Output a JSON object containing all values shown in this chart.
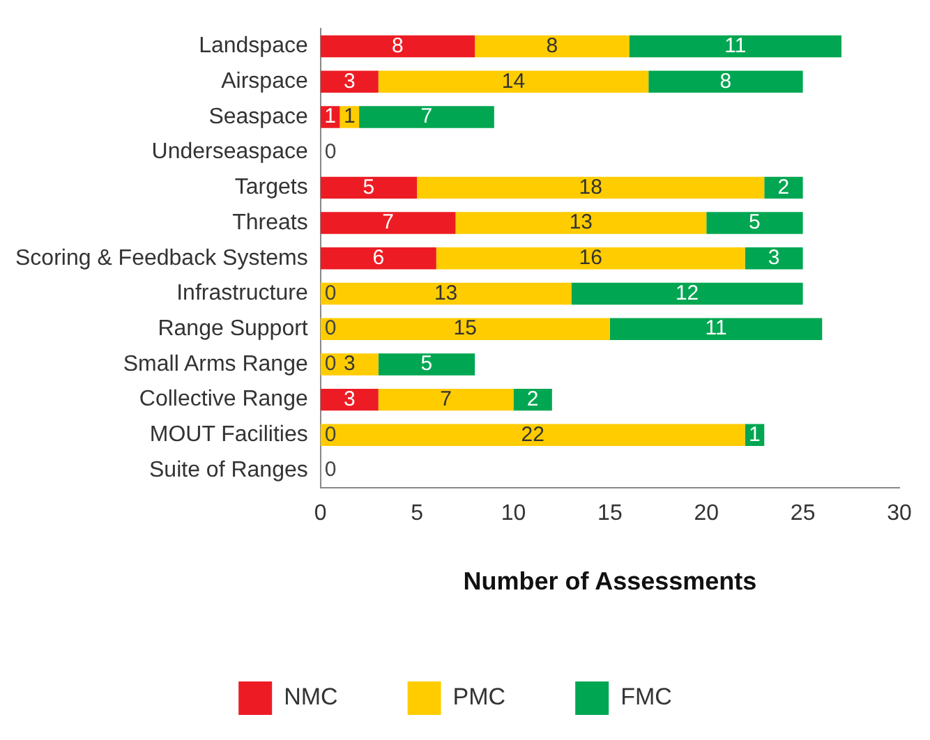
{
  "chart_data": {
    "type": "bar",
    "orientation": "horizontal",
    "stacked": true,
    "xlabel": "Number of Assessments",
    "categories": [
      "Landspace",
      "Airspace",
      "Seaspace",
      "Underseaspace",
      "Targets",
      "Threats",
      "Scoring & Feedback Systems",
      "Infrastructure",
      "Range Support",
      "Small Arms Range",
      "Collective Range",
      "MOUT Facilities",
      "Suite of Ranges"
    ],
    "series": [
      {
        "name": "NMC",
        "color": "#ed1c24",
        "values": [
          8,
          3,
          1,
          0,
          5,
          7,
          6,
          0,
          0,
          0,
          3,
          0,
          0
        ],
        "value_labels": [
          "8",
          "3",
          "1",
          "0",
          "5",
          "7",
          "6",
          null,
          null,
          null,
          "3",
          null,
          "0"
        ]
      },
      {
        "name": "PMC",
        "color": "#ffcc00",
        "values": [
          8,
          14,
          1,
          0,
          18,
          13,
          16,
          13,
          15,
          3,
          7,
          22,
          0
        ],
        "value_labels": [
          "8",
          "14",
          "1",
          null,
          "18",
          "13",
          "16",
          "13",
          "15",
          "3",
          "7",
          "22",
          null
        ]
      },
      {
        "name": "FMC",
        "color": "#00a651",
        "values": [
          11,
          8,
          7,
          0,
          2,
          5,
          3,
          12,
          11,
          5,
          2,
          1,
          0
        ],
        "value_labels": [
          "11",
          "8",
          "7",
          null,
          "2",
          "5",
          "3",
          "12",
          "11",
          "5",
          "2",
          "1",
          null
        ]
      }
    ],
    "xlim": [
      0,
      30
    ],
    "xticks": [
      0,
      5,
      10,
      15,
      20,
      25,
      30
    ],
    "grid": false,
    "legend": "bottom",
    "annotations": [
      {
        "text": "0",
        "y": "Infrastructure"
      },
      {
        "text": "0",
        "y": "Range Support"
      },
      {
        "text": "0",
        "y": "Small Arms Range"
      },
      {
        "text": "0",
        "y": "MOUT Facilities"
      }
    ]
  }
}
